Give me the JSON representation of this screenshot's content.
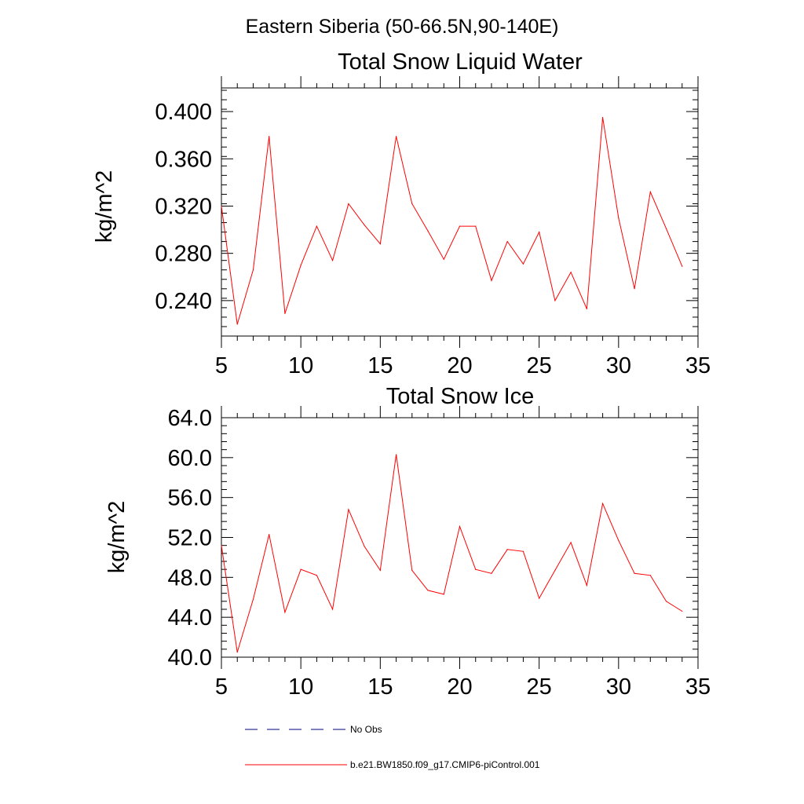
{
  "page": {
    "title": "Eastern Siberia (50-66.5N,90-140E)"
  },
  "colors": {
    "model_series": "#ff0000",
    "obs_series": "#000080",
    "axes": "#000000"
  },
  "chart_data": [
    {
      "type": "line",
      "title": "Total Snow Liquid Water",
      "xlabel": "",
      "ylabel": "kg/m^2",
      "xlim": [
        5,
        35
      ],
      "ylim": [
        0.21,
        0.42
      ],
      "x_ticks": [
        5,
        10,
        15,
        20,
        25,
        30,
        35
      ],
      "x_tick_labels": [
        "5",
        "10",
        "15",
        "20",
        "25",
        "30",
        "35"
      ],
      "y_ticks": [
        0.24,
        0.28,
        0.32,
        0.36,
        0.4
      ],
      "y_tick_labels": [
        "0.240",
        "0.280",
        "0.320",
        "0.360",
        "0.400"
      ],
      "grid": false,
      "series": [
        {
          "name": "b.e21.BW1850.f09_g17.CMIP6-piControl.001",
          "color": "#ff0000",
          "x": [
            5,
            6,
            7,
            8,
            9,
            10,
            11,
            12,
            13,
            14,
            15,
            16,
            17,
            18,
            19,
            20,
            21,
            22,
            23,
            24,
            25,
            26,
            27,
            28,
            29,
            30,
            31,
            32,
            33,
            34
          ],
          "values": [
            0.32,
            0.22,
            0.266,
            0.379,
            0.229,
            0.27,
            0.303,
            0.274,
            0.322,
            0.304,
            0.288,
            0.379,
            0.322,
            0.299,
            0.275,
            0.303,
            0.303,
            0.257,
            0.29,
            0.271,
            0.298,
            0.24,
            0.264,
            0.233,
            0.395,
            0.31,
            0.25,
            0.332,
            0.301,
            0.269
          ]
        }
      ]
    },
    {
      "type": "line",
      "title": "Total Snow Ice",
      "xlabel": "",
      "ylabel": "kg/m^2",
      "xlim": [
        5,
        35
      ],
      "ylim": [
        40.0,
        64.0
      ],
      "x_ticks": [
        5,
        10,
        15,
        20,
        25,
        30,
        35
      ],
      "x_tick_labels": [
        "5",
        "10",
        "15",
        "20",
        "25",
        "30",
        "35"
      ],
      "y_ticks": [
        40,
        44,
        48,
        52,
        56,
        60,
        64
      ],
      "y_tick_labels": [
        "40.0",
        "44.0",
        "48.0",
        "52.0",
        "56.0",
        "60.0",
        "64.0"
      ],
      "grid": false,
      "series": [
        {
          "name": "b.e21.BW1850.f09_g17.CMIP6-piControl.001",
          "color": "#ff0000",
          "x": [
            5,
            6,
            7,
            8,
            9,
            10,
            11,
            12,
            13,
            14,
            15,
            16,
            17,
            18,
            19,
            20,
            21,
            22,
            23,
            24,
            25,
            26,
            27,
            28,
            29,
            30,
            31,
            32,
            33,
            34
          ],
          "values": [
            51.2,
            40.5,
            45.8,
            52.3,
            44.5,
            48.8,
            48.2,
            44.8,
            54.8,
            51.1,
            48.7,
            60.3,
            48.7,
            46.7,
            46.3,
            53.1,
            48.8,
            48.4,
            50.8,
            50.6,
            45.9,
            48.7,
            51.5,
            47.2,
            55.4,
            51.7,
            48.4,
            48.2,
            45.6,
            44.6
          ]
        }
      ]
    }
  ],
  "legend": {
    "placement": "bottom-left",
    "items": [
      {
        "label": "No Obs",
        "style": "dashed",
        "color": "#000080"
      },
      {
        "label": "b.e21.BW1850.f09_g17.CMIP6-piControl.001",
        "style": "solid",
        "color": "#ff0000"
      }
    ]
  }
}
